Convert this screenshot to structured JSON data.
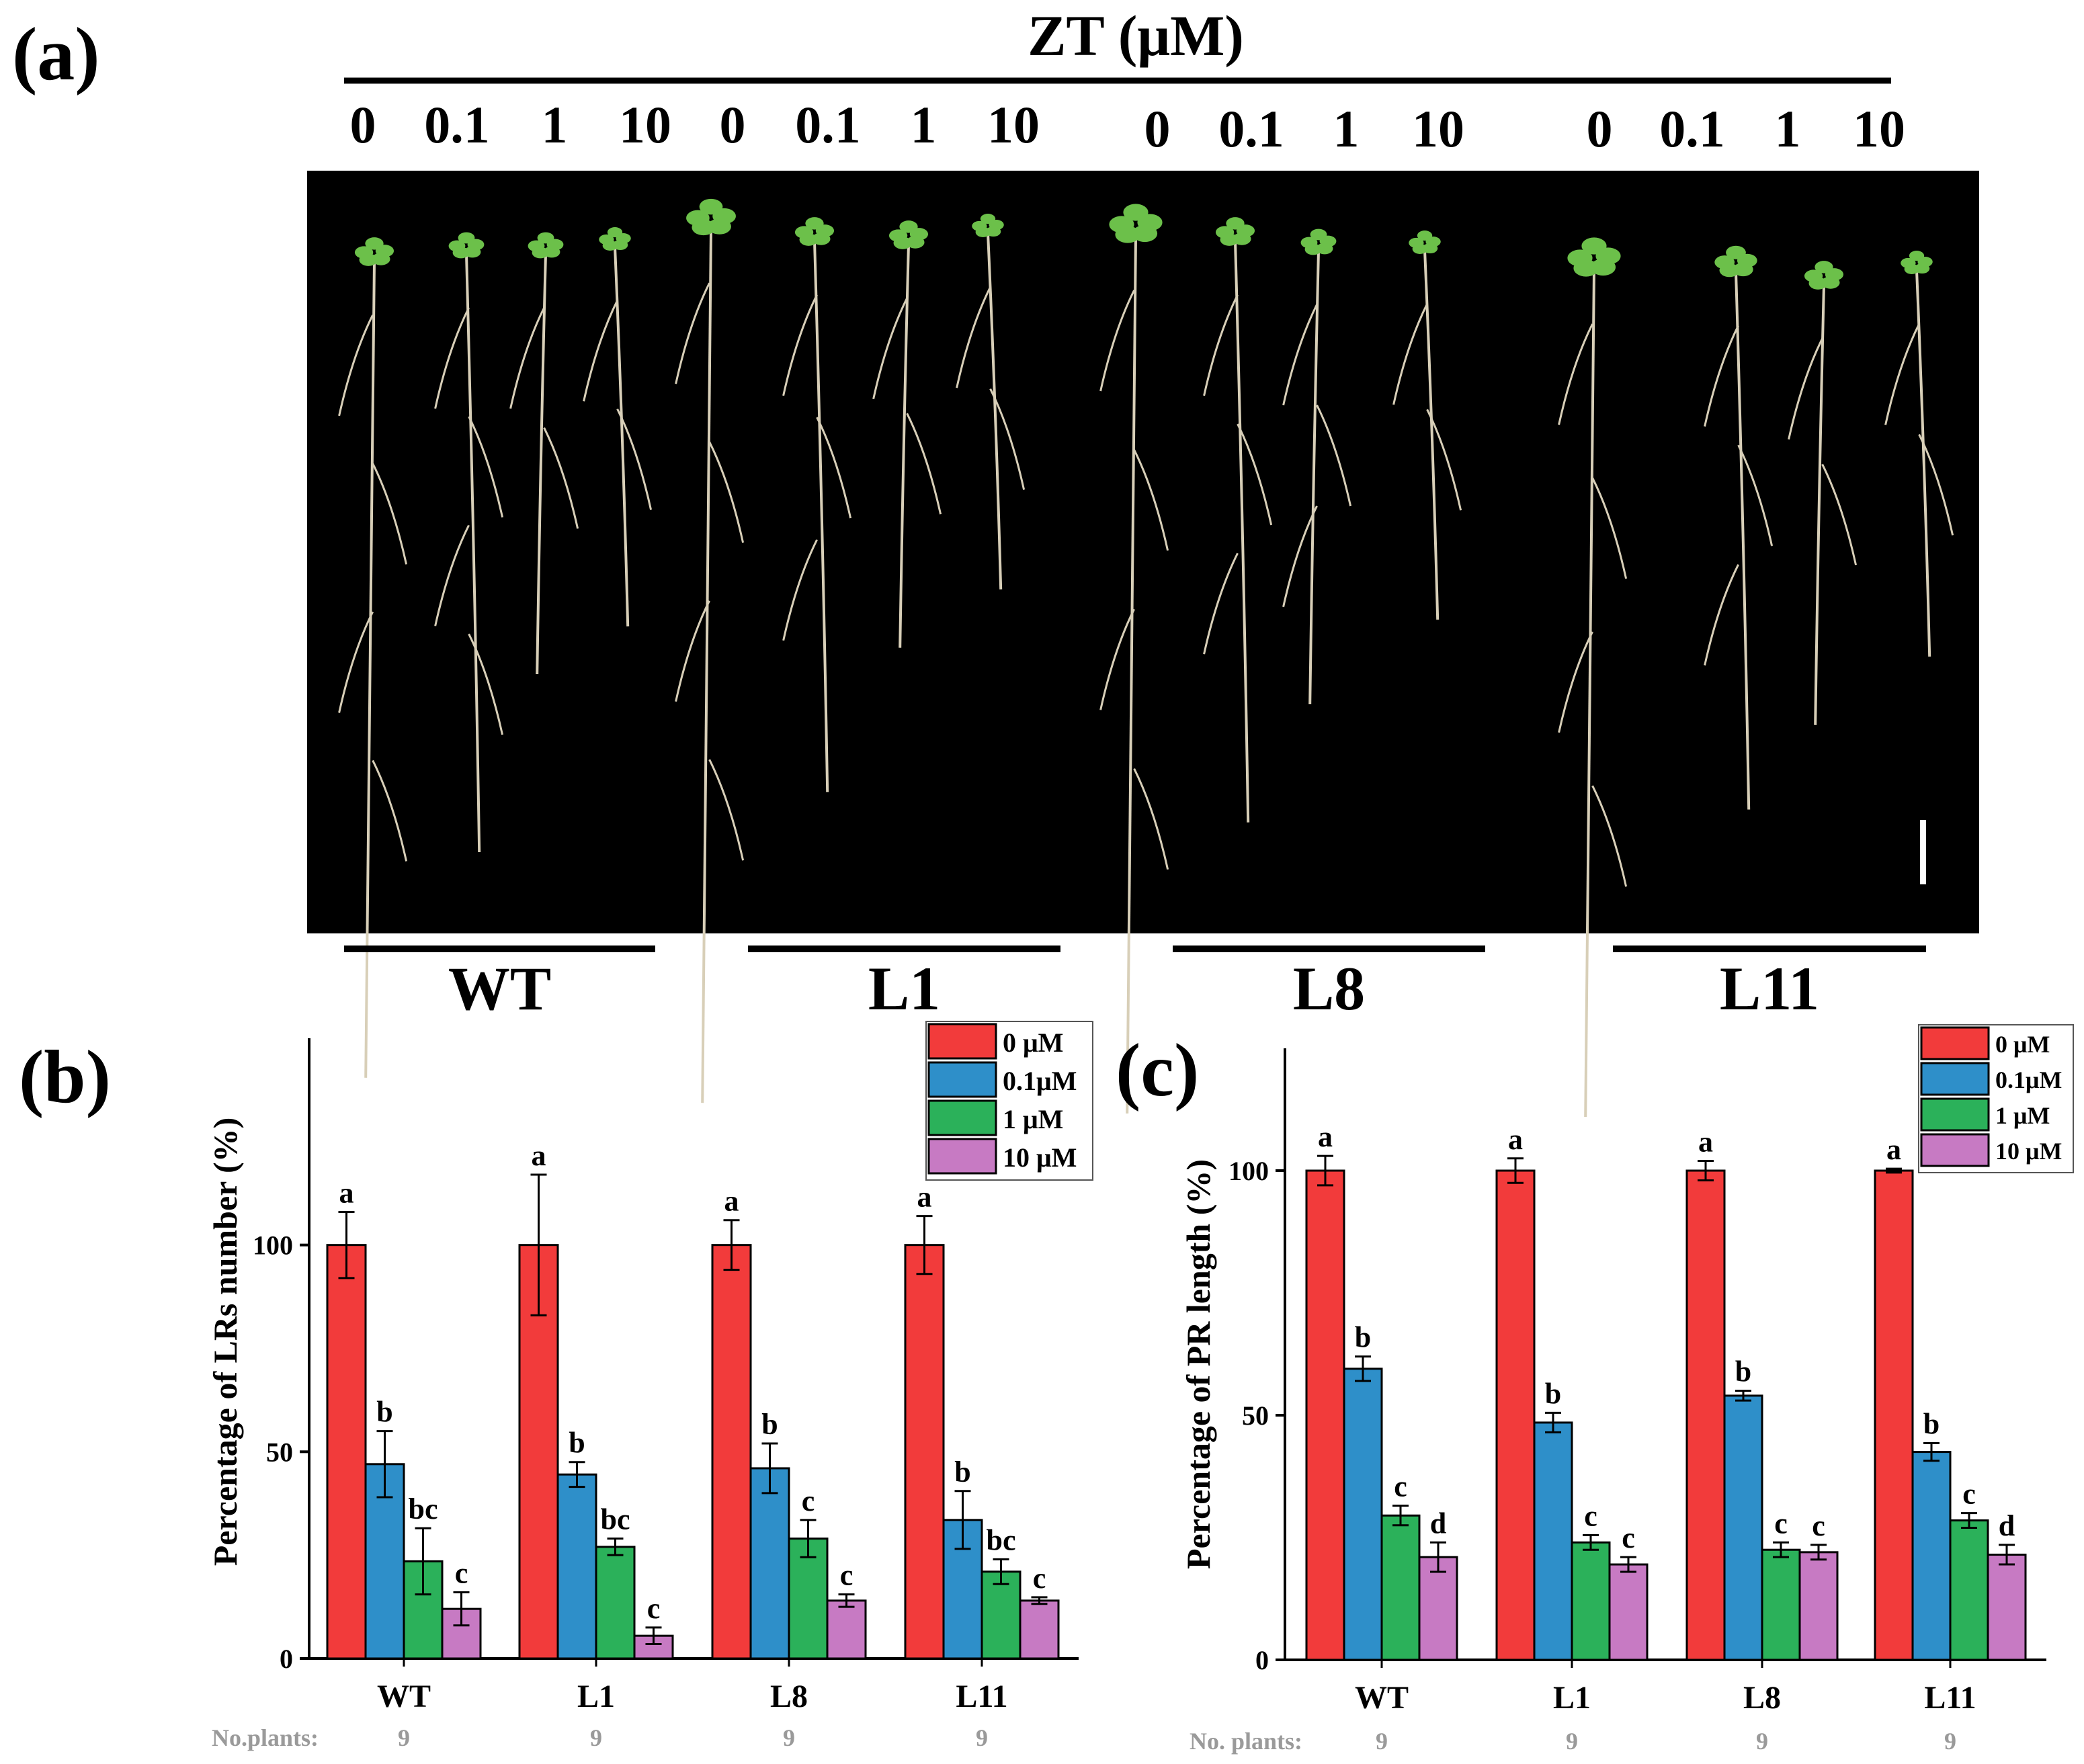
{
  "panel_a": {
    "label": "(a)",
    "treatment_title": "ZT (μM)",
    "concentration_labels": [
      "0",
      "0.1",
      "1",
      "10",
      "0",
      "0.1",
      "1",
      "10",
      "0",
      "0.1",
      "1",
      "10",
      "0",
      "0.1",
      "1",
      "10"
    ],
    "group_labels": [
      "WT",
      "L1",
      "L8",
      "L11"
    ]
  },
  "colors": {
    "c0": "#f23b3b",
    "c01": "#2e8fc9",
    "c1": "#2bb15a",
    "c10": "#c77ac3",
    "photo_background": "#000000",
    "leaf": "#6cc04a",
    "root": "#d8cfb8",
    "footer_text": "#9a9a9a"
  },
  "chart_data": [
    {
      "type": "bar",
      "panel_label": "(b)",
      "categories": [
        "WT",
        "L1",
        "L8",
        "L11"
      ],
      "ylabel": "Percentage of LRs number (%)",
      "yticks": [
        0,
        50,
        100
      ],
      "ylim": [
        0,
        150
      ],
      "legend_position": "top-right",
      "series": [
        {
          "name": "0   μM",
          "color_key": "c0",
          "values": [
            100,
            100,
            100,
            100
          ],
          "errors": [
            8,
            17,
            6,
            7
          ],
          "letters": [
            "a",
            "a",
            "a",
            "a"
          ]
        },
        {
          "name": "0.1μM",
          "color_key": "c01",
          "values": [
            47,
            44.5,
            46,
            33.5
          ],
          "errors": [
            8,
            3,
            6,
            7
          ],
          "letters": [
            "b",
            "b",
            "b",
            "b"
          ]
        },
        {
          "name": "1   μM",
          "color_key": "c1",
          "values": [
            23.5,
            27,
            29,
            21
          ],
          "errors": [
            8,
            2,
            4.5,
            3
          ],
          "letters": [
            "bc",
            "bc",
            "c",
            "bc"
          ]
        },
        {
          "name": "10 μM",
          "color_key": "c10",
          "values": [
            12,
            5.5,
            14,
            14
          ],
          "errors": [
            4,
            2,
            1.5,
            0.8
          ],
          "letters": [
            "c",
            "c",
            "c",
            "c"
          ]
        }
      ],
      "footer_label": "No.plants:",
      "footer_values": [
        "9",
        "9",
        "9",
        "9"
      ]
    },
    {
      "type": "bar",
      "panel_label": "(c)",
      "categories": [
        "WT",
        "L1",
        "L8",
        "L11"
      ],
      "ylabel": "Percentage of PR length (%)",
      "yticks": [
        0,
        50,
        100
      ],
      "ylim": [
        0,
        125
      ],
      "legend_position": "top-right",
      "series": [
        {
          "name": "0   μM",
          "color_key": "c0",
          "values": [
            100,
            100,
            100,
            100
          ],
          "errors": [
            3,
            2.5,
            2,
            0.4
          ],
          "letters": [
            "a",
            "a",
            "a",
            "a"
          ]
        },
        {
          "name": "0.1μM",
          "color_key": "c01",
          "values": [
            59.5,
            48.5,
            54,
            42.5
          ],
          "errors": [
            2.5,
            2,
            1,
            1.8
          ],
          "letters": [
            "b",
            "b",
            "b",
            "b"
          ]
        },
        {
          "name": "1   μM",
          "color_key": "c1",
          "values": [
            29.5,
            24,
            22.5,
            28.5
          ],
          "errors": [
            2,
            1.5,
            1.5,
            1.5
          ],
          "letters": [
            "c",
            "c",
            "c",
            "c"
          ]
        },
        {
          "name": "10 μM",
          "color_key": "c10",
          "values": [
            21,
            19.5,
            22,
            21.5
          ],
          "errors": [
            3,
            1.5,
            1.5,
            2
          ],
          "letters": [
            "d",
            "c",
            "c",
            "d"
          ]
        }
      ],
      "footer_label": "No. plants:",
      "footer_values": [
        "9",
        "9",
        "9",
        "9"
      ]
    }
  ]
}
